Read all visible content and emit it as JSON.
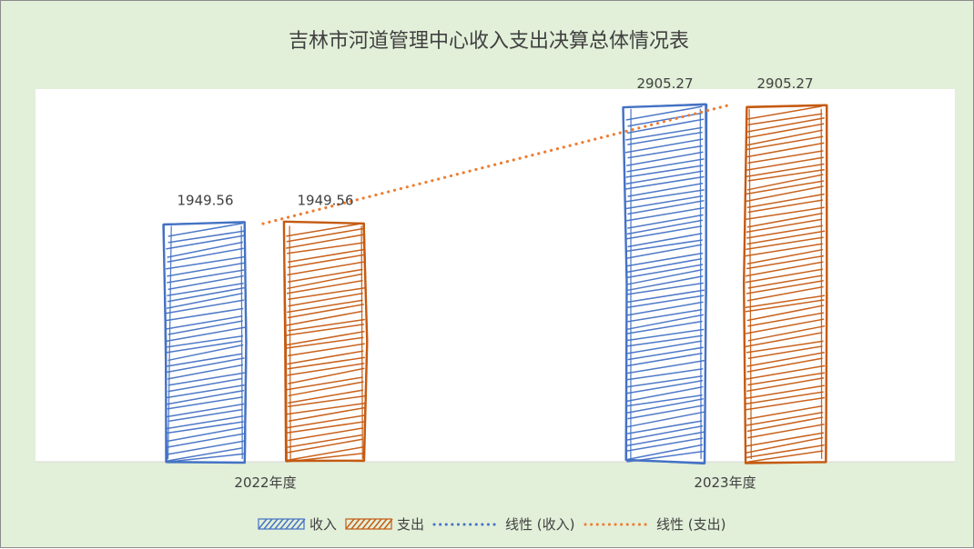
{
  "chart_data": {
    "type": "bar",
    "title": "吉林市河道管理中心收入支出决算总体情况表",
    "categories": [
      "2022年度",
      "2023年度"
    ],
    "series": [
      {
        "name": "收入",
        "values": [
          1949.56,
          2905.27
        ],
        "labels": [
          "1949.56",
          "2905.27"
        ],
        "color": "#4472c4"
      },
      {
        "name": "支出",
        "values": [
          1949.56,
          2905.27
        ],
        "labels": [
          "1949.56",
          "2905.27"
        ],
        "color": "#c55a11"
      }
    ],
    "trendlines": [
      {
        "name": "线性 (收入)",
        "type": "linear",
        "color": "#4472c4"
      },
      {
        "name": "线性 (支出)",
        "type": "linear",
        "color": "#ed7d31"
      }
    ],
    "ylim": [
      0,
      3000
    ],
    "grid": false,
    "legend_position": "bottom"
  }
}
